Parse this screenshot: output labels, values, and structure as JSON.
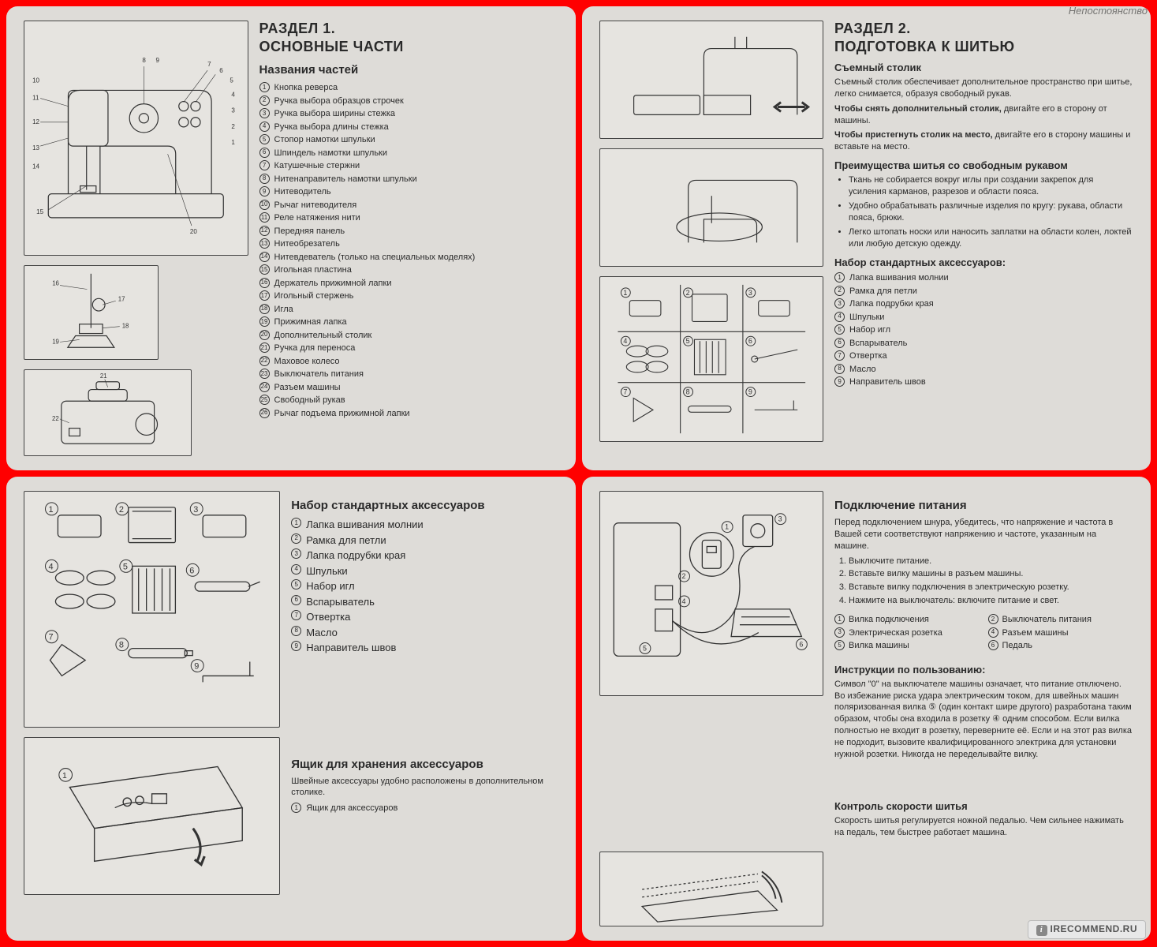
{
  "watermark_top": "Непостоянство",
  "watermark_bottom": "IRECOMMEND.RU",
  "colors": {
    "frame": "#ff0000",
    "paper": "#dedcd8",
    "ink": "#2a2a2a",
    "rule": "#444444"
  },
  "p1": {
    "section_label": "РАЗДЕЛ 1.",
    "section_title": "ОСНОВНЫЕ ЧАСТИ",
    "sub": "Названия частей",
    "parts": [
      "Кнопка реверса",
      "Ручка выбора образцов строчек",
      "Ручка выбора ширины стежка",
      "Ручка выбора длины стежка",
      "Стопор намотки шпульки",
      "Шпиндель намотки шпульки",
      "Катушечные стержни",
      "Нитенаправитель намотки шпульки",
      "Нитеводитель",
      "Рычаг нитеводителя",
      "Реле натяжения нити",
      "Передняя панель",
      "Нитеобрезатель",
      "Нитевдеватель (только на специальных моделях)",
      "Игольная пластина",
      "Держатель прижимной лапки",
      "Игольный стержень",
      "Игла",
      "Прижимная лапка",
      "Дополнительный столик",
      "Ручка для переноса",
      "Маховое колесо",
      "Выключатель питания",
      "Разъем машины",
      "Свободный рукав",
      "Рычаг подъема прижимной лапки"
    ]
  },
  "p2": {
    "section_label": "РАЗДЕЛ 2.",
    "section_title": "ПОДГОТОВКА К ШИТЬЮ",
    "h_table": "Съемный столик",
    "table_para": "Съемный столик обеспечивает дополнительное пространство при шитье, легко снимается, образуя свободный рукав.",
    "remove_bold": "Чтобы снять дополнительный столик,",
    "remove_rest": "двигайте его в сторону от машины.",
    "attach_bold": "Чтобы пристегнуть столик на место,",
    "attach_rest": "двигайте его в сторону машины и вставьте на место.",
    "h_adv": "Преимущества шитья со свободным рукавом",
    "advantages": [
      "Ткань не собирается вокруг иглы при создании закрепок для усиления карманов, разрезов и области пояса.",
      "Удобно обрабатывать различные изделия по кругу: рукава, области пояса, брюки.",
      "Легко штопать носки или наносить заплатки на области колен, локтей или любую детскую одежду."
    ],
    "h_acc": "Набор стандартных аксессуаров:",
    "accessories": [
      "Лапка вшивания молнии",
      "Рамка для петли",
      "Лапка подрубки края",
      "Шпульки",
      "Набор игл",
      "Вспарыватель",
      "Отвертка",
      "Масло",
      "Направитель швов"
    ]
  },
  "p3": {
    "h_acc": "Набор стандартных аксессуаров",
    "accessories": [
      "Лапка вшивания молнии",
      "Рамка для петли",
      "Лапка подрубки края",
      "Шпульки",
      "Набор игл",
      "Вспарыватель",
      "Отвертка",
      "Масло",
      "Направитель швов"
    ],
    "h_box": "Ящик для хранения аксессуаров",
    "box_para": "Швейные аксессуары удобно расположены в дополнительном столике.",
    "box_item": "Ящик для аксессуаров"
  },
  "p4": {
    "h_power": "Подключение питания",
    "power_para": "Перед подключением шнура, убедитесь, что напряжение и частота в Вашей сети соответствуют напряжению и частоте, указанным на машине.",
    "steps": [
      "Выключите питание.",
      "Вставьте вилку машины в разъем машины.",
      "Вставьте вилку подключения в электрическую розетку.",
      "Нажмите на выключатель: включите питание и свет."
    ],
    "legend": [
      "Вилка подключения",
      "Выключатель питания",
      "Электрическая розетка",
      "Разъем машины",
      "Вилка машины",
      "Педаль"
    ],
    "h_instr": "Инструкции по пользованию:",
    "instr_para": "Символ \"0\" на выключателе машины означает, что питание отключено.\nВо избежание риска удара электрическим током, для швейных машин поляризованная вилка ⑤ (один контакт шире другого) разработана таким образом, чтобы она входила в розетку ④ одним способом. Если вилка полностью не входит в розетку, переверните её. Если и на этот раз вилка не подходит, вызовите квалифицированного электрика для установки нужной розетки. Никогда не переделывайте вилку.",
    "h_speed": "Контроль скорости шитья",
    "speed_para": "Скорость шитья регулируется ножной педалью. Чем сильнее нажимать на педаль, тем быстрее работает машина."
  }
}
